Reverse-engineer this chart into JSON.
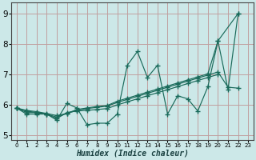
{
  "xlabel": "Humidex (Indice chaleur)",
  "bg_color": "#cce8e8",
  "grid_color": "#c0a0a0",
  "line_color": "#1a6a5a",
  "xlim": [
    -0.5,
    23.5
  ],
  "ylim": [
    4.85,
    9.35
  ],
  "xticks": [
    0,
    1,
    2,
    3,
    4,
    5,
    6,
    7,
    8,
    9,
    10,
    11,
    12,
    13,
    14,
    15,
    16,
    17,
    18,
    19,
    20,
    21,
    22,
    23
  ],
  "yticks": [
    5,
    6,
    7,
    8,
    9
  ],
  "line1_x": [
    0,
    1,
    2,
    3,
    4,
    5,
    6,
    7,
    8,
    9,
    10,
    11,
    12,
    13,
    14,
    15,
    16,
    17,
    18,
    19,
    20,
    21,
    22
  ],
  "line1_y": [
    5.9,
    5.7,
    5.7,
    5.7,
    5.5,
    6.05,
    5.9,
    5.35,
    5.4,
    5.4,
    5.7,
    7.3,
    7.75,
    6.9,
    7.3,
    5.7,
    6.3,
    6.2,
    5.8,
    6.6,
    8.1,
    6.5,
    9.0
  ],
  "line2_x": [
    0,
    1,
    2,
    3,
    4,
    5,
    6,
    7,
    8,
    9,
    10,
    11,
    12,
    13,
    14,
    15,
    16,
    17,
    18,
    19,
    20
  ],
  "line2_y": [
    5.9,
    5.75,
    5.75,
    5.7,
    5.55,
    5.75,
    5.8,
    5.82,
    5.85,
    5.88,
    6.0,
    6.1,
    6.2,
    6.3,
    6.4,
    6.5,
    6.6,
    6.7,
    6.8,
    6.9,
    7.0
  ],
  "line3_x": [
    0,
    1,
    2,
    3,
    4,
    5,
    6,
    7,
    8,
    9,
    10,
    11,
    12,
    13,
    14,
    15,
    16,
    17,
    18,
    19,
    20,
    21,
    22
  ],
  "line3_y": [
    5.9,
    5.82,
    5.78,
    5.72,
    5.65,
    5.72,
    5.82,
    5.88,
    5.92,
    5.96,
    6.08,
    6.18,
    6.28,
    6.38,
    6.48,
    6.58,
    6.68,
    6.78,
    6.88,
    6.98,
    7.08,
    6.58,
    6.55
  ],
  "line4_x": [
    0,
    1,
    2,
    3,
    4,
    5,
    6,
    7,
    8,
    9,
    10,
    11,
    12,
    13,
    14,
    15,
    16,
    17,
    18,
    19,
    20,
    22
  ],
  "line4_y": [
    5.9,
    5.8,
    5.75,
    5.7,
    5.6,
    5.72,
    5.85,
    5.9,
    5.95,
    5.98,
    6.12,
    6.22,
    6.32,
    6.42,
    6.52,
    6.62,
    6.72,
    6.82,
    6.92,
    7.02,
    8.1,
    9.0
  ]
}
